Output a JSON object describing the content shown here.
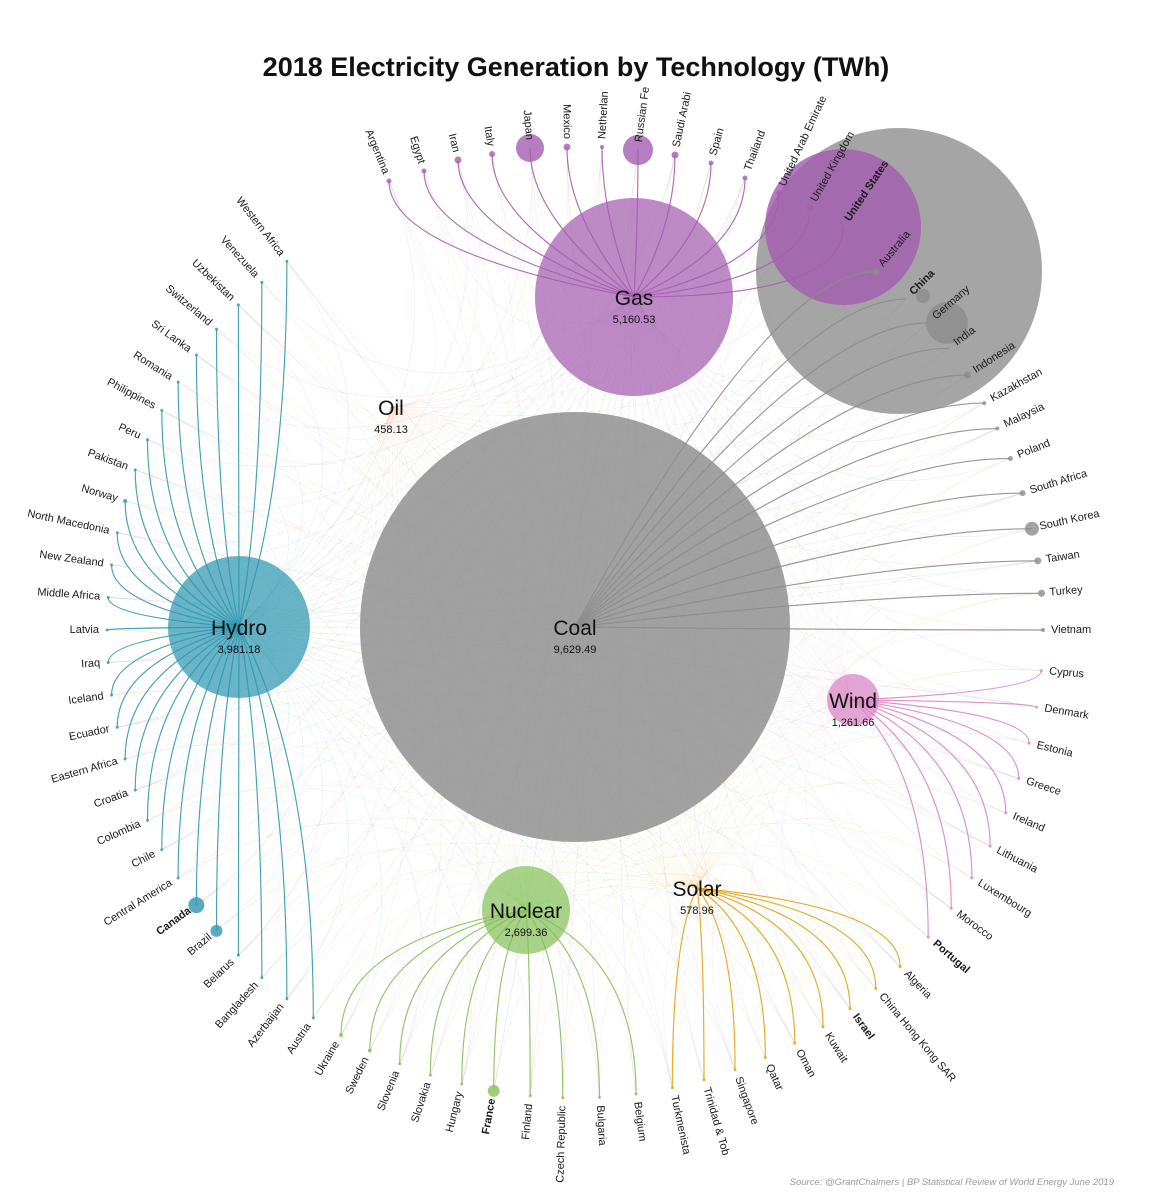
{
  "chart_data": {
    "type": "network-bubble",
    "title": "2018 Electricity Generation by Technology (TWh)",
    "source": "Source: @GrantChalmers | BP Statistical Review of World Energy June 2019",
    "colors": {
      "Coal": "#8c8c8c",
      "Gas": "#a45db0",
      "Hydro": "#2f97b0",
      "Nuclear": "#86c05a",
      "Solar": "#e6a00e",
      "Wind": "#d884c4",
      "Oil": "#e8823a"
    },
    "technologies": [
      {
        "name": "Coal",
        "value": 9629.49,
        "label": "9,629.49"
      },
      {
        "name": "Gas",
        "value": 5160.53,
        "label": "5,160.53"
      },
      {
        "name": "Hydro",
        "value": 3981.18,
        "label": "3,981.18"
      },
      {
        "name": "Nuclear",
        "value": 2699.36,
        "label": "2,699.36"
      },
      {
        "name": "Wind",
        "value": 1261.66,
        "label": "1,261.66"
      },
      {
        "name": "Solar",
        "value": 578.96,
        "label": "578.96"
      },
      {
        "name": "Oil",
        "value": 458.13,
        "label": "458.13"
      }
    ],
    "countries": [
      {
        "name": "Argentina",
        "tech": "Gas"
      },
      {
        "name": "Egypt",
        "tech": "Gas"
      },
      {
        "name": "Iran",
        "tech": "Gas"
      },
      {
        "name": "Italy",
        "tech": "Gas"
      },
      {
        "name": "Japan",
        "tech": "Gas"
      },
      {
        "name": "Mexico",
        "tech": "Gas"
      },
      {
        "name": "Netherlan",
        "tech": "Gas"
      },
      {
        "name": "Russian Fe",
        "tech": "Gas"
      },
      {
        "name": "Saudi Arabi",
        "tech": "Gas"
      },
      {
        "name": "Spain",
        "tech": "Gas"
      },
      {
        "name": "Thailand",
        "tech": "Gas"
      },
      {
        "name": "United Arab Emirate",
        "tech": "Gas"
      },
      {
        "name": "United Kingdom",
        "tech": "Gas"
      },
      {
        "name": "United States",
        "tech": "Gas",
        "bold": true
      },
      {
        "name": "Australia",
        "tech": "Coal"
      },
      {
        "name": "China",
        "tech": "Coal",
        "bold": true
      },
      {
        "name": "Germany",
        "tech": "Coal"
      },
      {
        "name": "India",
        "tech": "Coal"
      },
      {
        "name": "Indonesia",
        "tech": "Coal"
      },
      {
        "name": "Kazakhstan",
        "tech": "Coal"
      },
      {
        "name": "Malaysia",
        "tech": "Coal"
      },
      {
        "name": "Poland",
        "tech": "Coal"
      },
      {
        "name": "South Africa",
        "tech": "Coal"
      },
      {
        "name": "South Korea",
        "tech": "Coal"
      },
      {
        "name": "Taiwan",
        "tech": "Coal"
      },
      {
        "name": "Turkey",
        "tech": "Coal"
      },
      {
        "name": "Vietnam",
        "tech": "Coal"
      },
      {
        "name": "Cyprus",
        "tech": "Wind"
      },
      {
        "name": "Denmark",
        "tech": "Wind"
      },
      {
        "name": "Estonia",
        "tech": "Wind"
      },
      {
        "name": "Greece",
        "tech": "Wind"
      },
      {
        "name": "Ireland",
        "tech": "Wind"
      },
      {
        "name": "Lithuania",
        "tech": "Wind"
      },
      {
        "name": "Luxembourg",
        "tech": "Wind"
      },
      {
        "name": "Morocco",
        "tech": "Wind"
      },
      {
        "name": "Portugal",
        "tech": "Wind",
        "bold": true
      },
      {
        "name": "Algeria",
        "tech": "Solar"
      },
      {
        "name": "China Hong Kong SAR",
        "tech": "Solar"
      },
      {
        "name": "Israel",
        "tech": "Solar",
        "bold": true
      },
      {
        "name": "Kuwait",
        "tech": "Solar"
      },
      {
        "name": "Oman",
        "tech": "Solar"
      },
      {
        "name": "Qatar",
        "tech": "Solar"
      },
      {
        "name": "Singapore",
        "tech": "Solar"
      },
      {
        "name": "Trinidad & Tob",
        "tech": "Solar"
      },
      {
        "name": "Turkmenista",
        "tech": "Solar"
      },
      {
        "name": "Belgium",
        "tech": "Nuclear"
      },
      {
        "name": "Bulgaria",
        "tech": "Nuclear"
      },
      {
        "name": "Czech Republic",
        "tech": "Nuclear"
      },
      {
        "name": "Finland",
        "tech": "Nuclear"
      },
      {
        "name": "France",
        "tech": "Nuclear",
        "bold": true
      },
      {
        "name": "Hungary",
        "tech": "Nuclear"
      },
      {
        "name": "Slovakia",
        "tech": "Nuclear"
      },
      {
        "name": "Slovenia",
        "tech": "Nuclear"
      },
      {
        "name": "Sweden",
        "tech": "Nuclear"
      },
      {
        "name": "Ukraine",
        "tech": "Nuclear"
      },
      {
        "name": "Austria",
        "tech": "Hydro"
      },
      {
        "name": "Azerbaijan",
        "tech": "Hydro"
      },
      {
        "name": "Bangladesh",
        "tech": "Hydro"
      },
      {
        "name": "Belarus",
        "tech": "Hydro"
      },
      {
        "name": "Brazil",
        "tech": "Hydro"
      },
      {
        "name": "Canada",
        "tech": "Hydro",
        "bold": true
      },
      {
        "name": "Central America",
        "tech": "Hydro"
      },
      {
        "name": "Chile",
        "tech": "Hydro"
      },
      {
        "name": "Colombia",
        "tech": "Hydro"
      },
      {
        "name": "Croatia",
        "tech": "Hydro"
      },
      {
        "name": "Eastern Africa",
        "tech": "Hydro"
      },
      {
        "name": "Ecuador",
        "tech": "Hydro"
      },
      {
        "name": "Iceland",
        "tech": "Hydro"
      },
      {
        "name": "Iraq",
        "tech": "Hydro"
      },
      {
        "name": "Latvia",
        "tech": "Hydro"
      },
      {
        "name": "Middle Africa",
        "tech": "Hydro"
      },
      {
        "name": "New Zealand",
        "tech": "Hydro"
      },
      {
        "name": "North Macedonia",
        "tech": "Hydro"
      },
      {
        "name": "Norway",
        "tech": "Hydro"
      },
      {
        "name": "Pakistan",
        "tech": "Hydro"
      },
      {
        "name": "Peru",
        "tech": "Hydro"
      },
      {
        "name": "Philippines",
        "tech": "Hydro"
      },
      {
        "name": "Romania",
        "tech": "Hydro"
      },
      {
        "name": "Sri Lanka",
        "tech": "Hydro"
      },
      {
        "name": "Switzerland",
        "tech": "Hydro"
      },
      {
        "name": "Uzbekistan",
        "tech": "Hydro"
      },
      {
        "name": "Venezuela",
        "tech": "Hydro"
      },
      {
        "name": "Western Africa",
        "tech": "Hydro"
      }
    ]
  }
}
